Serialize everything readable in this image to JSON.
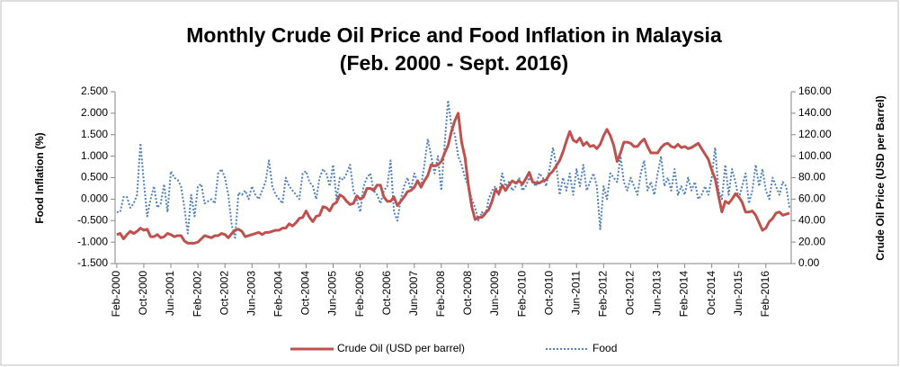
{
  "chart_data": {
    "type": "line",
    "title": "Monthly Crude Oil Price and Food Inflation in Malaysia",
    "subtitle": "(Feb. 2000 - Sept. 2016)",
    "y_label": "Food Inflation (%)",
    "y2_label": "Crude Oil Price (USD per Barrel)",
    "legend": "bottom",
    "grid": false,
    "categories": [
      "Feb-2000",
      null,
      null,
      null,
      null,
      null,
      null,
      null,
      "Oct-2000",
      null,
      null,
      null,
      null,
      null,
      null,
      null,
      "Jun-2001",
      null,
      null,
      null,
      null,
      null,
      null,
      null,
      "Feb-2002",
      null,
      null,
      null,
      null,
      null,
      null,
      null,
      "Oct-2002",
      null,
      null,
      null,
      null,
      null,
      null,
      null,
      "Jun-2003",
      null,
      null,
      null,
      null,
      null,
      null,
      null,
      "Feb-2004",
      null,
      null,
      null,
      null,
      null,
      null,
      null,
      "Oct-2004",
      null,
      null,
      null,
      null,
      null,
      null,
      null,
      "Jun-2005",
      null,
      null,
      null,
      null,
      null,
      null,
      null,
      "Feb-2006",
      null,
      null,
      null,
      null,
      null,
      null,
      null,
      "Oct-2006",
      null,
      null,
      null,
      null,
      null,
      null,
      null,
      "Jun-2007",
      null,
      null,
      null,
      null,
      null,
      null,
      null,
      "Feb-2008",
      null,
      null,
      null,
      null,
      null,
      null,
      null,
      "Oct-2008",
      null,
      null,
      null,
      null,
      null,
      null,
      null,
      "Jun-2009",
      null,
      null,
      null,
      null,
      null,
      null,
      null,
      "Feb-2010",
      null,
      null,
      null,
      null,
      null,
      null,
      null,
      "Oct-2010",
      null,
      null,
      null,
      null,
      null,
      null,
      null,
      "Jun-2011",
      null,
      null,
      null,
      null,
      null,
      null,
      null,
      "Feb-2012",
      null,
      null,
      null,
      null,
      null,
      null,
      null,
      "Oct-2012",
      null,
      null,
      null,
      null,
      null,
      null,
      null,
      "Jun-2013",
      null,
      null,
      null,
      null,
      null,
      null,
      null,
      "Feb-2014",
      null,
      null,
      null,
      null,
      null,
      null,
      null,
      "Oct-2014",
      null,
      null,
      null,
      null,
      null,
      null,
      null,
      "Jun-2015",
      null,
      null,
      null,
      null,
      null,
      null,
      null,
      "Feb-2016",
      null,
      null,
      null,
      null,
      null,
      null,
      null
    ],
    "series": [
      {
        "name": "Crude Oil (USD per barrel)",
        "color": "#c0504d",
        "axis": "y2",
        "style": "solid",
        "values": [
          27,
          28,
          23,
          27,
          30,
          28,
          30,
          33,
          31,
          32,
          25,
          25,
          27,
          24,
          25,
          28,
          27,
          25,
          26,
          26,
          21,
          19,
          19,
          19,
          20,
          23,
          26,
          25,
          24,
          26,
          26,
          28,
          27,
          24,
          28,
          31,
          32,
          30,
          25,
          26,
          27,
          28,
          29,
          27,
          29,
          29,
          30,
          31,
          31,
          33,
          33,
          37,
          35,
          38,
          42,
          43,
          49,
          43,
          39,
          44,
          45,
          53,
          52,
          49,
          55,
          57,
          64,
          62,
          58,
          55,
          56,
          63,
          60,
          62,
          70,
          70,
          68,
          73,
          73,
          62,
          58,
          58,
          62,
          54,
          58,
          62,
          67,
          68,
          71,
          77,
          71,
          77,
          82,
          92,
          91,
          92,
          95,
          103,
          110,
          123,
          133,
          140,
          113,
          99,
          73,
          53,
          41,
          43,
          43,
          47,
          50,
          58,
          69,
          65,
          73,
          68,
          73,
          77,
          75,
          77,
          74,
          79,
          85,
          76,
          75,
          75,
          77,
          78,
          83,
          86,
          91,
          96,
          104,
          114,
          123,
          115,
          113,
          117,
          110,
          113,
          109,
          110,
          107,
          111,
          119,
          125,
          119,
          110,
          95,
          103,
          113,
          113,
          112,
          109,
          109,
          113,
          116,
          109,
          103,
          103,
          103,
          108,
          111,
          112,
          109,
          108,
          111,
          108,
          109,
          107,
          108,
          110,
          112,
          107,
          102,
          97,
          87,
          79,
          63,
          48,
          58,
          56,
          60,
          65,
          62,
          57,
          48,
          48,
          49,
          45,
          38,
          31,
          33,
          39,
          42,
          47,
          48,
          45,
          46,
          47
        ]
      },
      {
        "name": "Food",
        "color": "#4f81bd",
        "axis": "y",
        "style": "dotted",
        "values": [
          -0.3,
          -0.3,
          0.05,
          0.05,
          -0.2,
          -0.1,
          0.1,
          1.3,
          0.4,
          -0.4,
          0.0,
          0.3,
          -0.2,
          -0.1,
          0.35,
          -0.3,
          0.65,
          0.5,
          0.45,
          0.3,
          -0.2,
          -0.8,
          0.1,
          -0.4,
          0.3,
          0.35,
          -0.1,
          -0.05,
          0.0,
          -0.1,
          0.6,
          0.7,
          0.5,
          0.1,
          -0.6,
          -0.9,
          0.15,
          0.1,
          0.2,
          0.0,
          0.3,
          0.1,
          0.0,
          0.2,
          0.4,
          0.9,
          0.3,
          0.1,
          0.0,
          -0.1,
          0.5,
          0.3,
          0.2,
          0.1,
          0.0,
          0.6,
          0.65,
          0.4,
          0.3,
          0.0,
          0.5,
          0.7,
          0.6,
          0.3,
          0.8,
          0.0,
          0.5,
          0.45,
          0.6,
          0.8,
          0.2,
          0.0,
          -0.3,
          0.3,
          0.5,
          0.6,
          0.2,
          0.1,
          -0.1,
          0.2,
          0.3,
          0.9,
          -0.3,
          -0.5,
          0.0,
          0.3,
          0.5,
          0.2,
          0.6,
          0.4,
          0.3,
          0.8,
          1.4,
          1.0,
          0.6,
          1.0,
          0.2,
          1.3,
          2.3,
          1.7,
          1.5,
          1.0,
          0.8,
          0.5,
          0.3,
          0.0,
          -0.2,
          -0.5,
          -0.3,
          -0.4,
          0.0,
          0.2,
          0.3,
          0.1,
          0.6,
          0.3,
          0.4,
          0.2,
          0.3,
          0.5,
          0.2,
          0.3,
          0.5,
          0.4,
          0.3,
          0.6,
          0.5,
          0.3,
          0.7,
          1.2,
          0.8,
          0.1,
          0.5,
          0.2,
          0.6,
          0.1,
          0.7,
          0.3,
          0.8,
          0.2,
          0.4,
          0.6,
          0.3,
          -0.7,
          0.3,
          0.0,
          0.6,
          0.5,
          0.4,
          1.0,
          0.4,
          0.2,
          0.5,
          0.3,
          0.1,
          0.6,
          0.9,
          0.2,
          0.4,
          0.1,
          0.6,
          1.0,
          0.3,
          0.5,
          0.2,
          0.7,
          0.1,
          0.3,
          0.1,
          0.5,
          0.2,
          0.4,
          0.0,
          0.1,
          0.3,
          0.1,
          0.5,
          1.2,
          0.2,
          0.0,
          0.8,
          0.1,
          0.7,
          0.4,
          0.0,
          0.3,
          0.6,
          -0.1,
          0.2,
          0.8,
          0.3,
          0.7,
          0.2,
          0.0,
          0.5,
          0.3,
          0.1,
          0.4,
          0.3,
          -0.2
        ]
      }
    ],
    "ylim": [
      -1.5,
      2.5
    ],
    "yticks": [
      {
        "value": -1.5,
        "label": "-1.500"
      },
      {
        "value": -1,
        "label": "-1.000"
      },
      {
        "value": -0.5,
        "label": "-0.500"
      },
      {
        "value": 0,
        "label": "0.000"
      },
      {
        "value": 0.5,
        "label": "0.500"
      },
      {
        "value": 1,
        "label": "1.000"
      },
      {
        "value": 1.5,
        "label": "1.500"
      },
      {
        "value": 2,
        "label": "2.000"
      },
      {
        "value": 2.5,
        "label": "2.500"
      }
    ],
    "y2lim": [
      0,
      160
    ],
    "y2ticks": [
      {
        "value": 0,
        "label": "0.00"
      },
      {
        "value": 20,
        "label": "20.00"
      },
      {
        "value": 40,
        "label": "40.00"
      },
      {
        "value": 60,
        "label": "60.00"
      },
      {
        "value": 80,
        "label": "80.00"
      },
      {
        "value": 100,
        "label": "100.00"
      },
      {
        "value": 120,
        "label": "120.00"
      },
      {
        "value": 140,
        "label": "140.00"
      },
      {
        "value": 160,
        "label": "160.00"
      }
    ]
  }
}
